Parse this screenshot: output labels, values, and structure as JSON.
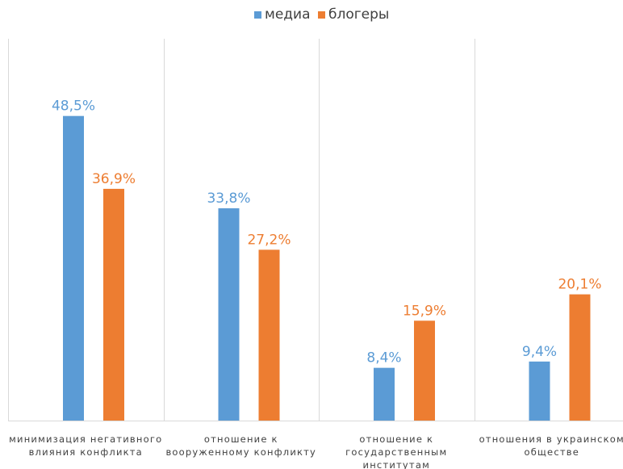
{
  "chart_data": {
    "type": "bar",
    "title": "",
    "xlabel": "",
    "ylabel": "",
    "ylim": [
      0,
      55
    ],
    "grid": false,
    "legend_position": "top-center",
    "value_suffix": "%",
    "decimal_separator": ",",
    "categories": [
      [
        "минимизация негативного",
        "влияния конфликта"
      ],
      [
        "отношение к",
        "вооруженному конфликту"
      ],
      [
        "отношение к",
        "государственным",
        "институтам"
      ],
      [
        "отношения в украинском",
        "обществе"
      ]
    ],
    "series": [
      {
        "name": "медиа",
        "color": "#5B9BD5",
        "values": [
          48.5,
          33.8,
          8.4,
          9.4
        ],
        "labels": [
          "48,5%",
          "33,8%",
          "8,4%",
          "9,4%"
        ]
      },
      {
        "name": "блогеры",
        "color": "#ED7D31",
        "values": [
          36.9,
          27.2,
          15.9,
          20.1
        ],
        "labels": [
          "36,9%",
          "27,2%",
          "15,9%",
          "20,1%"
        ]
      }
    ]
  }
}
